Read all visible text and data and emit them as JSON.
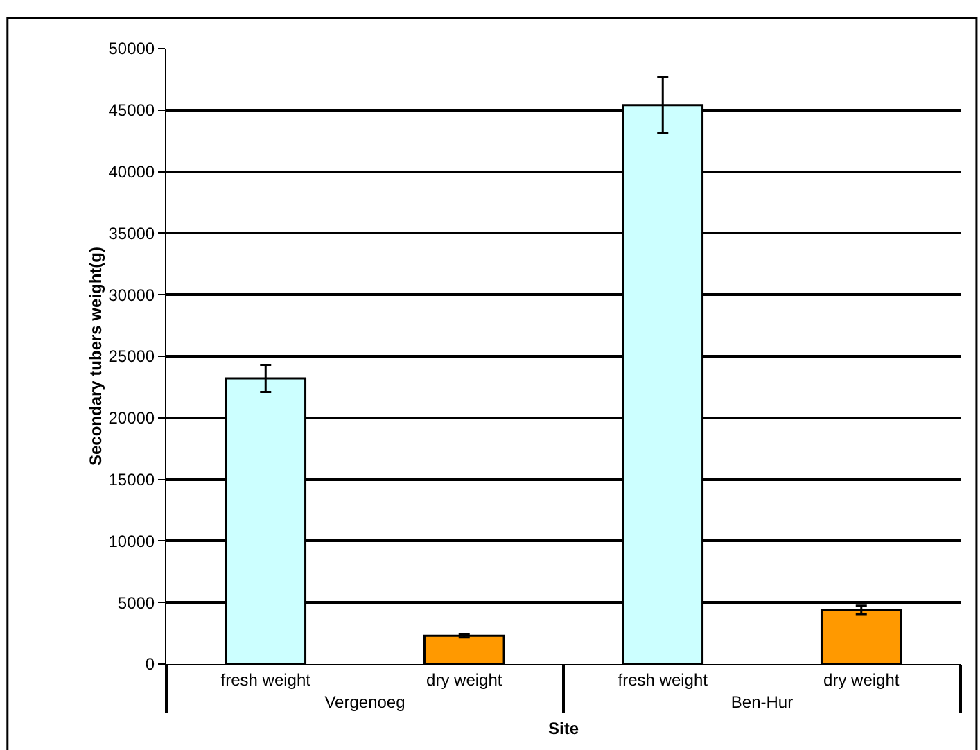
{
  "chart_data": {
    "type": "bar",
    "xlabel": "Site",
    "ylabel": "Secondary tubers weight(g)",
    "categories": [
      "fresh weight",
      "dry weight",
      "fresh weight",
      "dry weight"
    ],
    "values": [
      23200,
      2300,
      45400,
      4400
    ],
    "colors": [
      "#ccffff",
      "#ff9900",
      "#ccffff",
      "#ff9900"
    ],
    "errors": [
      1100,
      150,
      2300,
      350
    ],
    "annotations": [
      "Vergenoeg",
      "Ben-Hur"
    ],
    "ylim": [
      0,
      50000
    ],
    "yticks": [
      0,
      5000,
      10000,
      15000,
      20000,
      25000,
      30000,
      35000,
      40000,
      45000,
      50000
    ],
    "grid": "y",
    "legend": false
  }
}
